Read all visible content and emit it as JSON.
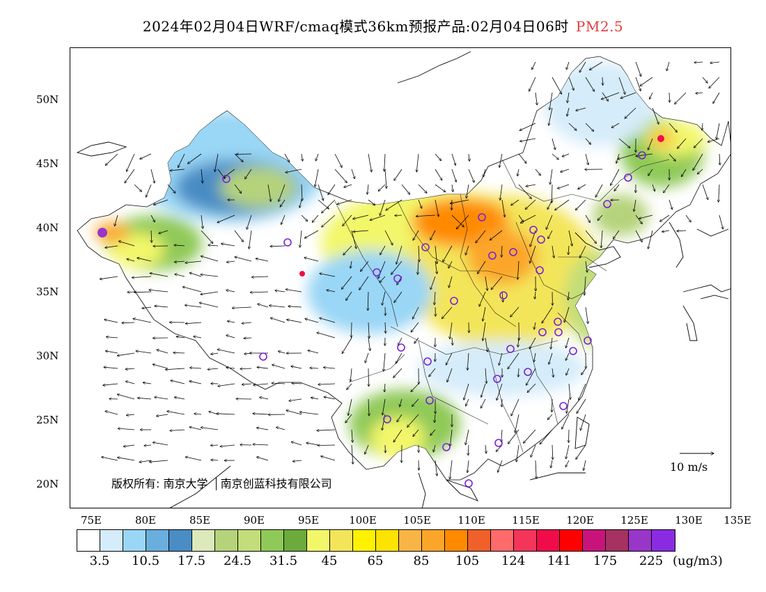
{
  "title": {
    "main": "2024年02月04日WRF/cmaq模式36km预报产品:02月04日06时",
    "pollutant": "PM2.5"
  },
  "axes": {
    "lat_labels": [
      "50N",
      "45N",
      "40N",
      "35N",
      "30N",
      "25N",
      "20N"
    ],
    "lon_labels": [
      "75E",
      "80E",
      "85E",
      "90E",
      "95E",
      "100E",
      "105E",
      "110E",
      "115E",
      "120E",
      "125E",
      "130E",
      "135E"
    ]
  },
  "copyright": {
    "prefix": "版权所有:",
    "org1": "南京大学",
    "org2": "南京创蓝科技有限公司"
  },
  "wind_scale": {
    "label": "10 m/s"
  },
  "legend": {
    "unit": "(ug/m3)",
    "colors": [
      "#ffffff",
      "#d5ecfa",
      "#9ad6f5",
      "#6aaedd",
      "#4a8cc4",
      "#dbe9bb",
      "#b5d37a",
      "#c2dd7a",
      "#8fc958",
      "#6daa3c",
      "#f2f76a",
      "#f3e55a",
      "#fff200",
      "#fde300",
      "#f8b445",
      "#fba62a",
      "#ff8a00",
      "#f0602a",
      "#ff6a6a",
      "#f5345a",
      "#f00c48",
      "#ff0000",
      "#c8147a",
      "#a53260",
      "#9a35c9",
      "#8a2be2"
    ],
    "labels": [
      "3.5",
      "10.5",
      "17.5",
      "24.5",
      "31.5",
      "45",
      "65",
      "85",
      "105",
      "124",
      "141",
      "175",
      "225"
    ]
  }
}
